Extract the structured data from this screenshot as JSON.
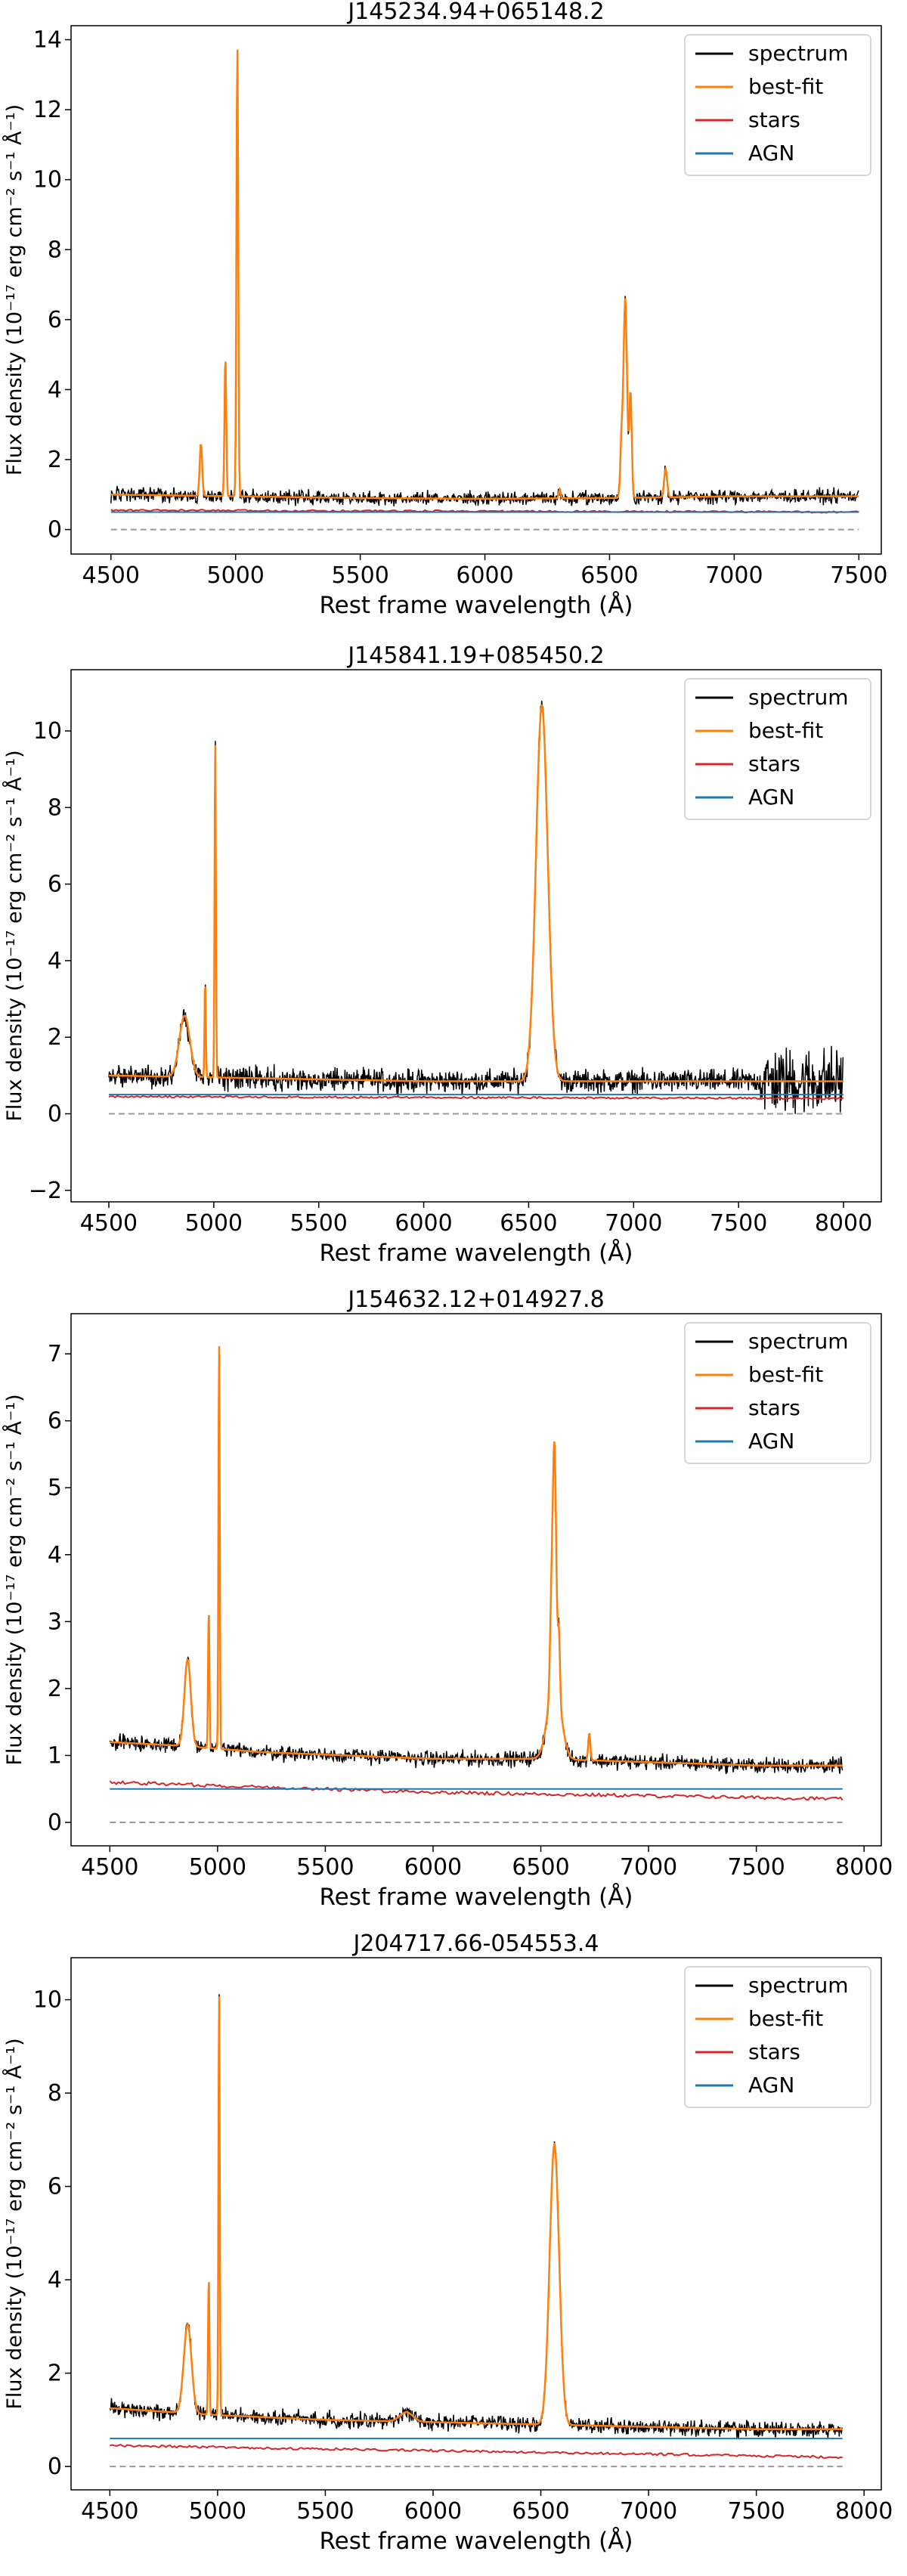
{
  "colors": {
    "spectrum": "#000000",
    "bestfit": "#ff7f0e",
    "stars": "#d62728",
    "agn": "#1f77b4",
    "zero": "#999999"
  },
  "chart_data": [
    {
      "type": "line",
      "title": "J145234.94+065148.2",
      "xlabel": "Rest frame wavelength (Å)",
      "ylabel": "Flux density (10⁻¹⁷ erg cm⁻² s⁻¹ Å⁻¹)",
      "xlim": [
        4340,
        7590
      ],
      "ylim": [
        -0.7,
        14.4
      ],
      "xticks": [
        4500,
        5000,
        5500,
        6000,
        6500,
        7000,
        7500
      ],
      "yticks": [
        0,
        2,
        4,
        6,
        8,
        10,
        12,
        14
      ],
      "legend": [
        "spectrum",
        "best-fit",
        "stars",
        "AGN"
      ],
      "legend_position": "top-right",
      "x_range": [
        4500,
        7500
      ],
      "continuum": {
        "x": [
          4500,
          5000,
          5500,
          6000,
          6500,
          7000,
          7500
        ],
        "y": [
          1.0,
          0.95,
          0.9,
          0.88,
          0.9,
          0.95,
          0.95
        ]
      },
      "stars_level": {
        "x": [
          4500,
          7500
        ],
        "y": [
          0.55,
          0.5
        ]
      },
      "agn_level": 0.5,
      "noise": 0.12,
      "lines": [
        {
          "center": 4861,
          "amplitude": 1.5,
          "sigma": 5
        },
        {
          "center": 4959,
          "amplitude": 4.0,
          "sigma": 3.5
        },
        {
          "center": 5007,
          "amplitude": 12.9,
          "sigma": 3.5
        },
        {
          "center": 6300,
          "amplitude": 0.25,
          "sigma": 4
        },
        {
          "center": 6548,
          "amplitude": 1.5,
          "sigma": 5
        },
        {
          "center": 6563,
          "amplitude": 5.7,
          "sigma": 7
        },
        {
          "center": 6584,
          "amplitude": 3.0,
          "sigma": 5
        },
        {
          "center": 6725,
          "amplitude": 0.8,
          "sigma": 6
        }
      ]
    },
    {
      "type": "line",
      "title": "J145841.19+085450.2",
      "xlabel": "Rest frame wavelength (Å)",
      "ylabel": "Flux density (10⁻¹⁷ erg cm⁻² s⁻¹ Å⁻¹)",
      "xlim": [
        4320,
        8180
      ],
      "ylim": [
        -2.3,
        11.6
      ],
      "xticks": [
        4500,
        5000,
        5500,
        6000,
        6500,
        7000,
        7500,
        8000
      ],
      "yticks": [
        -2,
        0,
        2,
        4,
        6,
        8,
        10
      ],
      "legend": [
        "spectrum",
        "best-fit",
        "stars",
        "AGN"
      ],
      "legend_position": "top-right",
      "x_range": [
        4500,
        8000
      ],
      "continuum": {
        "x": [
          4500,
          5000,
          5500,
          6000,
          6500,
          7000,
          7500,
          8000
        ],
        "y": [
          1.0,
          0.95,
          0.9,
          0.85,
          0.85,
          0.85,
          0.85,
          0.85
        ]
      },
      "stars_level": {
        "x": [
          4500,
          8000
        ],
        "y": [
          0.45,
          0.4
        ]
      },
      "agn_level": 0.5,
      "noise": 0.18,
      "lines": [
        {
          "center": 4861,
          "amplitude": 1.6,
          "sigma": 25
        },
        {
          "center": 4959,
          "amplitude": 2.5,
          "sigma": 3
        },
        {
          "center": 5007,
          "amplitude": 8.8,
          "sigma": 3
        },
        {
          "center": 6563,
          "amplitude": 9.8,
          "sigma": 28
        }
      ]
    },
    {
      "type": "line",
      "title": "J154632.12+014927.8",
      "xlabel": "Rest frame wavelength (Å)",
      "ylabel": "Flux density (10⁻¹⁷ erg cm⁻² s⁻¹ Å⁻¹)",
      "xlim": [
        4320,
        8080
      ],
      "ylim": [
        -0.35,
        7.6
      ],
      "xticks": [
        4500,
        5000,
        5500,
        6000,
        6500,
        7000,
        7500,
        8000
      ],
      "yticks": [
        0,
        1,
        2,
        3,
        4,
        5,
        6,
        7
      ],
      "legend": [
        "spectrum",
        "best-fit",
        "stars",
        "AGN"
      ],
      "legend_position": "top-right",
      "x_range": [
        4500,
        7900
      ],
      "continuum": {
        "x": [
          4500,
          4800,
          5200,
          5600,
          6000,
          6500,
          7000,
          7500,
          7900
        ],
        "y": [
          1.2,
          1.15,
          1.05,
          1.0,
          0.95,
          0.95,
          0.9,
          0.85,
          0.85
        ]
      },
      "stars_level": {
        "x": [
          4500,
          6000,
          7900
        ],
        "y": [
          0.6,
          0.45,
          0.35
        ]
      },
      "agn_level": 0.5,
      "noise": 0.07,
      "lines": [
        {
          "center": 4861,
          "amplitude": 1.3,
          "sigma": 15
        },
        {
          "center": 4959,
          "amplitude": 2.1,
          "sigma": 3
        },
        {
          "center": 5007,
          "amplitude": 6.1,
          "sigma": 3
        },
        {
          "center": 6548,
          "amplitude": 1.0,
          "sigma": 6
        },
        {
          "center": 6563,
          "amplitude": 3.5,
          "sigma": 8
        },
        {
          "center": 6563,
          "amplitude": 1.2,
          "sigma": 30
        },
        {
          "center": 6584,
          "amplitude": 0.9,
          "sigma": 5
        },
        {
          "center": 6725,
          "amplitude": 0.4,
          "sigma": 5
        }
      ]
    },
    {
      "type": "line",
      "title": "J204717.66-054553.4",
      "xlabel": "Rest frame wavelength (Å)",
      "ylabel": "Flux density (10⁻¹⁷ erg cm⁻² s⁻¹ Å⁻¹)",
      "xlim": [
        4320,
        8080
      ],
      "ylim": [
        -0.5,
        10.9
      ],
      "xticks": [
        4500,
        5000,
        5500,
        6000,
        6500,
        7000,
        7500,
        8000
      ],
      "yticks": [
        0,
        2,
        4,
        6,
        8,
        10
      ],
      "legend": [
        "spectrum",
        "best-fit",
        "stars",
        "AGN"
      ],
      "legend_position": "top-right",
      "x_range": [
        4500,
        7900
      ],
      "continuum": {
        "x": [
          4500,
          5000,
          5500,
          6000,
          6500,
          7000,
          7500,
          7900
        ],
        "y": [
          1.25,
          1.1,
          1.0,
          0.95,
          0.9,
          0.85,
          0.8,
          0.8
        ]
      },
      "stars_level": {
        "x": [
          4500,
          7900
        ],
        "y": [
          0.45,
          0.2
        ]
      },
      "agn_level": 0.6,
      "noise": 0.1,
      "lines": [
        {
          "center": 4861,
          "amplitude": 1.9,
          "sigma": 18
        },
        {
          "center": 4959,
          "amplitude": 3.0,
          "sigma": 3
        },
        {
          "center": 5007,
          "amplitude": 9.1,
          "sigma": 3
        },
        {
          "center": 5876,
          "amplitude": 0.2,
          "sigma": 30
        },
        {
          "center": 6563,
          "amplitude": 6.0,
          "sigma": 22
        }
      ]
    }
  ]
}
